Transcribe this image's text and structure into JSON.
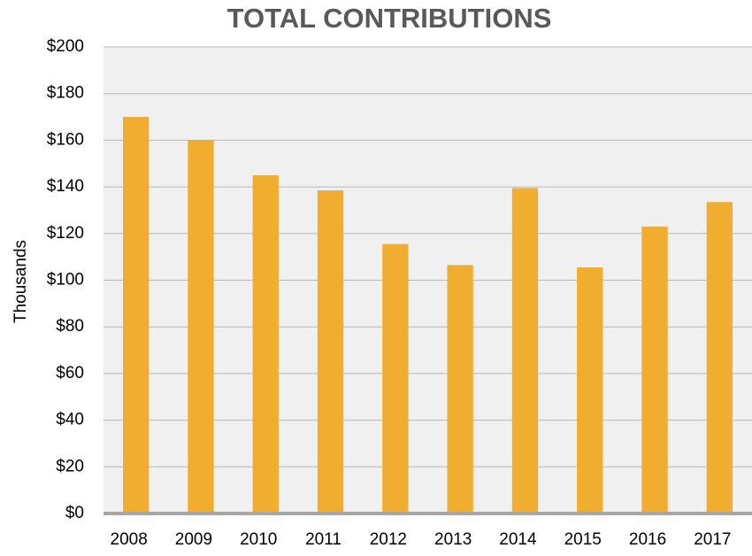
{
  "chart_data": {
    "type": "bar",
    "title": "TOTAL CONTRIBUTIONS",
    "y_label": "Thousands",
    "categories": [
      "2008",
      "2009",
      "2010",
      "2011",
      "2012",
      "2013",
      "2014",
      "2015",
      "2016",
      "2017"
    ],
    "values": [
      170,
      160,
      145,
      138.5,
      115.5,
      106.5,
      139.5,
      105.5,
      123,
      133.5
    ],
    "color": "#f0ad30",
    "ylim": [
      0,
      200
    ],
    "yticks": [
      {
        "value": 0,
        "label": "$0"
      },
      {
        "value": 20,
        "label": "$20"
      },
      {
        "value": 40,
        "label": "$40"
      },
      {
        "value": 60,
        "label": "$60"
      },
      {
        "value": 80,
        "label": "$80"
      },
      {
        "value": 100,
        "label": "$100"
      },
      {
        "value": 120,
        "label": "$120"
      },
      {
        "value": 140,
        "label": "$140"
      },
      {
        "value": 160,
        "label": "$160"
      },
      {
        "value": 180,
        "label": "$180"
      },
      {
        "value": 200,
        "label": "$200"
      }
    ],
    "grid": true
  }
}
